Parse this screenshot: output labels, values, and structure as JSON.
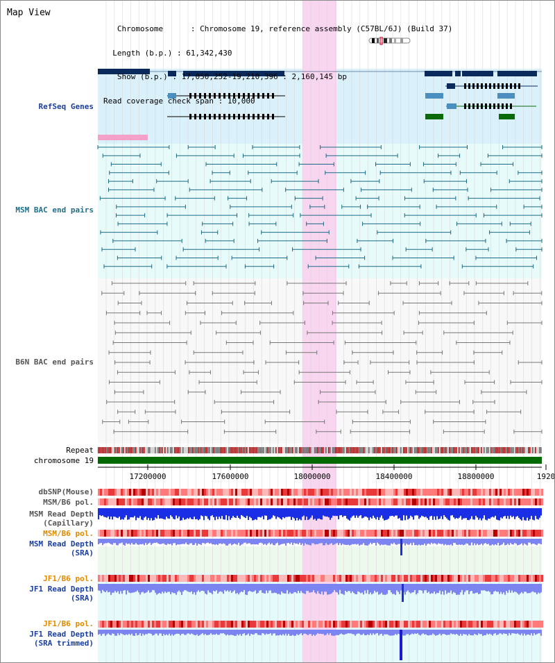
{
  "view": {
    "title": "Map View",
    "info": {
      "chromosome_key": "Chromosome",
      "chromosome_value": "Chromosome 19, reference assembly (C57BL/6J) (Build 37)",
      "length_key": "Length (b.p.)",
      "length_value": "61,342,430",
      "show_key": "Show (b.p.)",
      "show_value": "17,050,252-19,210,396 : 2,160,145 bp",
      "coverage_key": "Read coverage check span",
      "coverage_value": "10,000"
    }
  },
  "tracks": {
    "refseq": "RefSeq Genes",
    "msm_bac": "MSM BAC end pairs",
    "b6n_bac": "B6N BAC end pairs",
    "repeat": "Repeat",
    "chromosome": "chromosome 19",
    "dbsnp": "dbSNP(Mouse)",
    "msm_b6_pol": "MSM/B6 pol.",
    "msm_depth_cap_1": "MSM Read Depth",
    "msm_depth_cap_2": "(Capillary)",
    "msm_b6_pol_sra": "MSM/B6 pol.",
    "msm_depth_sra_1": "MSM Read Depth",
    "msm_depth_sra_2": "(SRA)",
    "jf1_b6_pol": "JF1/B6 pol.",
    "jf1_depth_1": "JF1 Read Depth",
    "jf1_depth_2": "(SRA)",
    "jf1_b6_pol_trim": "JF1/B6 pol.",
    "jf1_trim_1": "JF1 Read Depth",
    "jf1_trim_2": "(SRA trimmed)"
  },
  "axis": {
    "ticks": [
      "17200000",
      "17600000",
      "18000000",
      "18400000",
      "18800000",
      "1920"
    ]
  },
  "colors": {
    "refseq_bg": "#daf0fa",
    "msm_bac_bg": "#e8fbfb",
    "b6n_bac_bg": "#f8f8f8",
    "highlight": "#f9d6f0",
    "chromosome_bar": "#006a00",
    "gene_dark": "#0a2a5c",
    "gene_light": "#4a8fc0",
    "gene_green": "#0a6a0a",
    "msm_pairs": "#1a6a86",
    "b6n_pairs": "#777777",
    "depth_blue": "#1a2ee6",
    "depth_violet": "#7b84f0",
    "snp_red": "#e83a3a"
  }
}
